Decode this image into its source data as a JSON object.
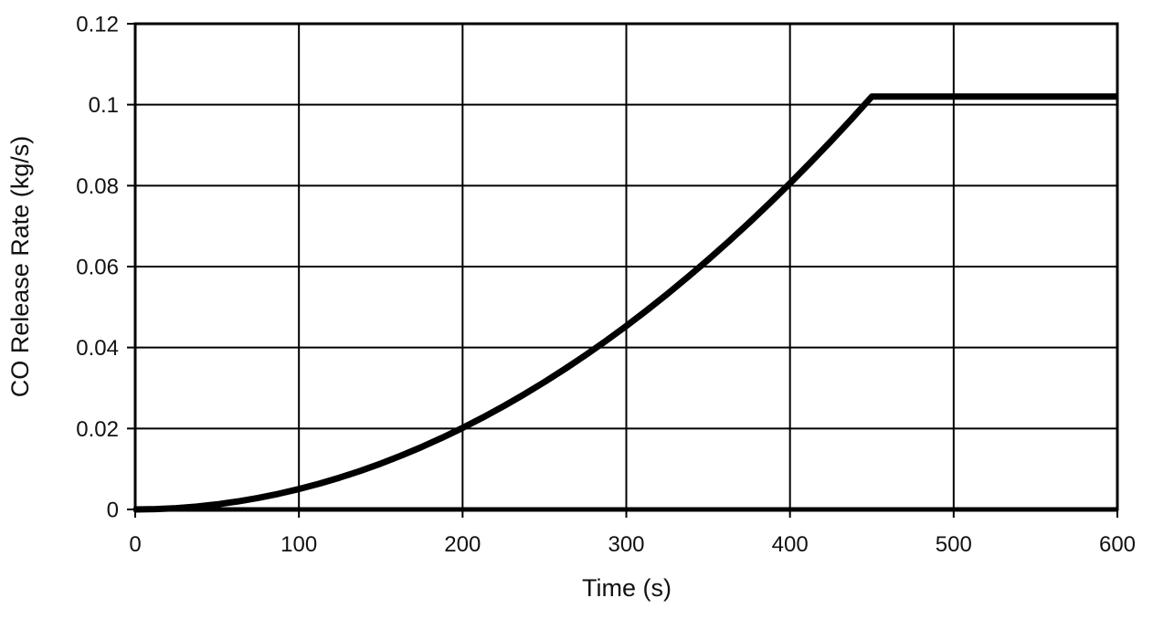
{
  "page": {
    "background": "#ffffff"
  },
  "colors": {
    "line": "#000000",
    "grid": "#000000",
    "axis": "#000000",
    "text": "#111111",
    "background": "#ffffff"
  },
  "chart_data": {
    "type": "line",
    "title": "",
    "xlabel": "Time (s)",
    "ylabel": "CO Release Rate (kg/s)",
    "xlim": [
      0,
      600
    ],
    "ylim": [
      0,
      0.12
    ],
    "x_ticks": [
      0,
      100,
      200,
      300,
      400,
      500,
      600
    ],
    "x_tick_labels": [
      "0",
      "100",
      "200",
      "300",
      "400",
      "500",
      "600"
    ],
    "y_ticks": [
      0,
      0.02,
      0.04,
      0.06,
      0.08,
      0.1,
      0.12
    ],
    "y_tick_labels": [
      "0",
      "0.02",
      "0.04",
      "0.06",
      "0.08",
      "0.1",
      "0.12"
    ],
    "grid": true,
    "legend": false,
    "peak_value": 0.102,
    "peak_time": 450,
    "series": [
      {
        "name": "CO Release Rate",
        "x": [
          0,
          12.5,
          25,
          37.5,
          50,
          62.5,
          75,
          87.5,
          100,
          112.5,
          125,
          137.5,
          150,
          162.5,
          175,
          187.5,
          200,
          212.5,
          225,
          237.5,
          250,
          262.5,
          275,
          287.5,
          300,
          312.5,
          325,
          337.5,
          350,
          362.5,
          375,
          387.5,
          400,
          412.5,
          425,
          437.5,
          450,
          475,
          500,
          525,
          550,
          575,
          600
        ],
        "y": [
          0,
          8e-05,
          0.00031,
          0.00071,
          0.00126,
          0.00197,
          0.00283,
          0.00386,
          0.00504,
          0.00637,
          0.00787,
          0.00952,
          0.01133,
          0.0133,
          0.01543,
          0.01771,
          0.02015,
          0.02275,
          0.0255,
          0.02841,
          0.03148,
          0.03471,
          0.03809,
          0.04163,
          0.04533,
          0.04919,
          0.0532,
          0.05738,
          0.0617,
          0.06619,
          0.07083,
          0.07563,
          0.08059,
          0.08571,
          0.09098,
          0.09641,
          0.102,
          0.102,
          0.102,
          0.102,
          0.102,
          0.102,
          0.102
        ]
      }
    ]
  }
}
